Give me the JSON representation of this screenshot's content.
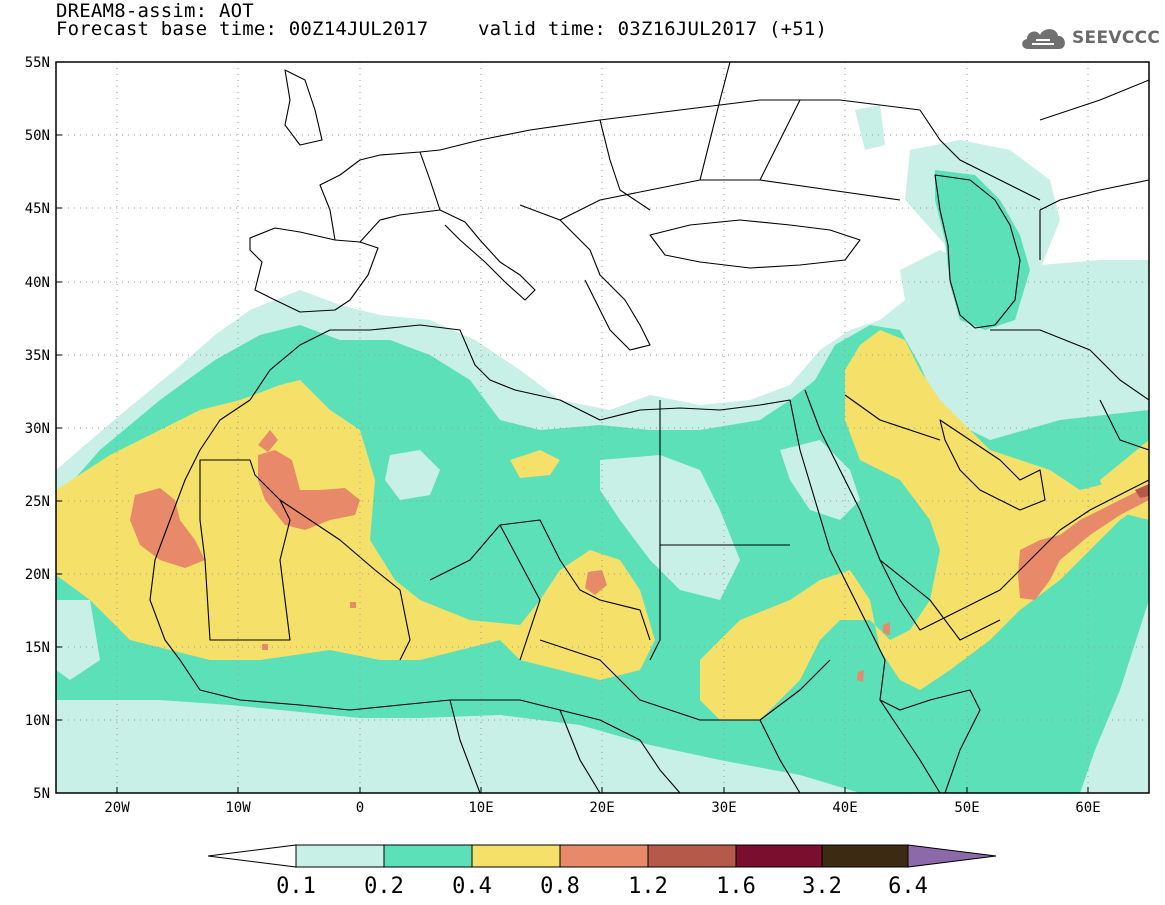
{
  "header": {
    "title_line1": "DREAM8-assim: AOT",
    "title_line2": "Forecast base time: 00Z14JUL2017",
    "valid_time": "valid time: 03Z16JUL2017 (+51)"
  },
  "logo": {
    "text": "SEEVCCC",
    "icon": "cloud-icon"
  },
  "map": {
    "projection": "cylindrical equidistant",
    "lon_range": [
      -25,
      65
    ],
    "lat_range": [
      5,
      55
    ],
    "grid": "dotted",
    "lat_ticks": [
      "55N",
      "50N",
      "45N",
      "40N",
      "35N",
      "30N",
      "25N",
      "20N",
      "15N",
      "10N",
      "5N"
    ],
    "lon_ticks": [
      "20W",
      "10W",
      "0",
      "10E",
      "20E",
      "30E",
      "40E",
      "50E",
      "60E"
    ]
  },
  "colorbar": {
    "labels": [
      "0.1",
      "0.2",
      "0.4",
      "0.8",
      "1.2",
      "1.6",
      "3.2",
      "6.4"
    ],
    "colors": [
      "#c8f0e6",
      "#5ce0b8",
      "#f5e06a",
      "#e8896a",
      "#b55a4a",
      "#7a0e2e",
      "#3d2a12",
      "#8c6aaa"
    ],
    "under_color": "#ffffff"
  },
  "colors": {
    "c1": "#c8f0e6",
    "c2": "#5ce0b8",
    "c3": "#f5e06a",
    "c4": "#e8896a",
    "c5": "#b55a4a"
  }
}
